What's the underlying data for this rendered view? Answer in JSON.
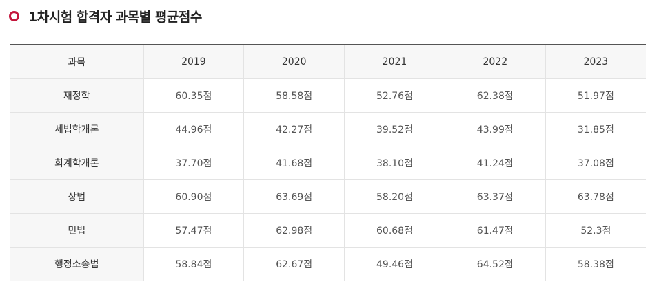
{
  "title": "1차시험 합격자 과목별 평균점수",
  "table": {
    "header": [
      "과목",
      "2019",
      "2020",
      "2021",
      "2022",
      "2023"
    ],
    "rows": [
      {
        "subject": "재정학",
        "values": [
          "60.35점",
          "58.58점",
          "52.76점",
          "62.38점",
          "51.97점"
        ]
      },
      {
        "subject": "세법학개론",
        "values": [
          "44.96점",
          "42.27점",
          "39.52점",
          "43.99점",
          "31.85점"
        ]
      },
      {
        "subject": "회계학개론",
        "values": [
          "37.70점",
          "41.68점",
          "38.10점",
          "41.24점",
          "37.08점"
        ]
      },
      {
        "subject": "상법",
        "values": [
          "60.90점",
          "63.69점",
          "58.20점",
          "63.37점",
          "63.78점"
        ]
      },
      {
        "subject": "민법",
        "values": [
          "57.47점",
          "62.98점",
          "60.68점",
          "61.47점",
          "52.3점"
        ]
      },
      {
        "subject": "행정소송법",
        "values": [
          "58.84점",
          "62.67점",
          "49.46점",
          "64.52점",
          "58.38점"
        ]
      }
    ]
  },
  "colors": {
    "accent": "#c4163c",
    "header_bg": "#f7f7f7",
    "border": "#e3e3e3"
  }
}
